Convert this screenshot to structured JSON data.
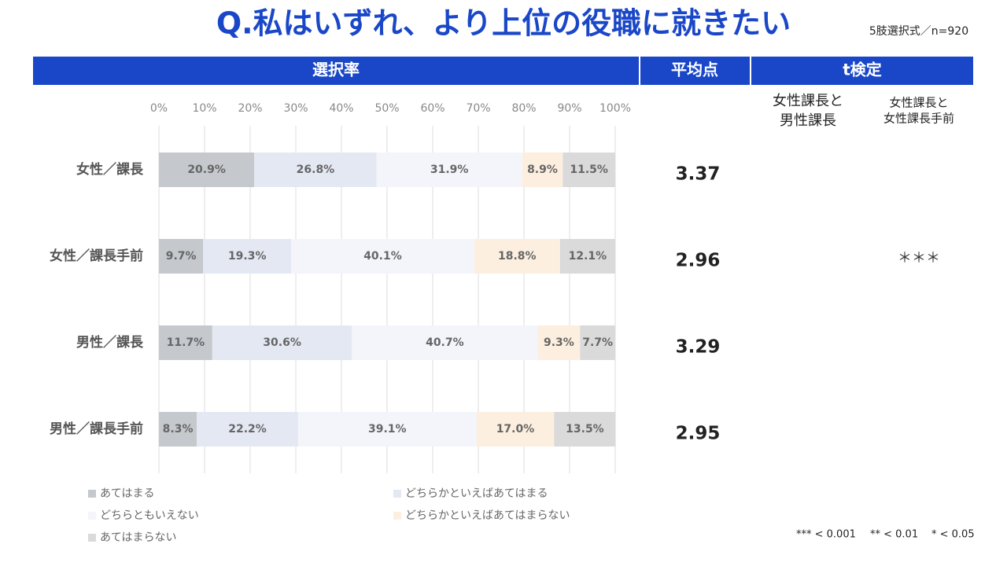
{
  "title": "Q.私はいずれ、より上位の役職に就きたい",
  "note": "5肢選択式／n=920",
  "headers": {
    "rate": "選択率",
    "mean": "平均点",
    "ttest": "t検定"
  },
  "ttest_columns": [
    [
      "女性課長と",
      "男性課長"
    ],
    [
      "女性課長と",
      "女性課長手前"
    ]
  ],
  "means": [
    3.37,
    2.96,
    3.29,
    2.95
  ],
  "significance": [
    {
      "row": 1,
      "col": 1,
      "label": "＊＊＊"
    }
  ],
  "footnote": [
    "*** < 0.001",
    "** < 0.01",
    "* < 0.05"
  ],
  "chart_data": {
    "type": "bar",
    "orientation": "horizontal",
    "stacked": true,
    "categories": [
      "女性／課長",
      "女性／課長手前",
      "男性／課長",
      "男性／課長手前"
    ],
    "series": [
      {
        "name": "あてはまる",
        "color": "#c5c8cc",
        "values": [
          20.9,
          9.7,
          11.7,
          8.3
        ],
        "value_labels": [
          "20.9%",
          "9.7%",
          "11.7%",
          "8.3%"
        ]
      },
      {
        "name": "どちらかといえばあてはまる",
        "color": "#e4e8f3",
        "values": [
          26.8,
          19.3,
          30.6,
          22.2
        ],
        "value_labels": [
          "26.8%",
          "19.3%",
          "30.6%",
          "22.2%"
        ]
      },
      {
        "name": "どちらともいえない",
        "color": "#f3f5fa",
        "values": [
          31.9,
          40.1,
          40.7,
          39.1
        ],
        "value_labels": [
          "31.9%",
          "40.1%",
          "40.7%",
          "39.1%"
        ]
      },
      {
        "name": "どちらかといえばあてはまらない",
        "color": "#fdefdf",
        "values": [
          8.9,
          18.8,
          9.3,
          17.0
        ],
        "value_labels": [
          "8.9%",
          "18.8%",
          "9.3%",
          "17.0%"
        ]
      },
      {
        "name": "あてはまらない",
        "color": "#dadada",
        "values": [
          11.5,
          12.1,
          7.7,
          13.5
        ],
        "value_labels": [
          "11.5%",
          "12.1%",
          "7.7%",
          "13.5%"
        ]
      }
    ],
    "xlim": [
      0,
      100
    ],
    "xticks": [
      {
        "value": 0,
        "label": "0%"
      },
      {
        "value": 10,
        "label": "10%"
      },
      {
        "value": 20,
        "label": "20%"
      },
      {
        "value": 30,
        "label": "30%"
      },
      {
        "value": 40,
        "label": "40%"
      },
      {
        "value": 50,
        "label": "50%"
      },
      {
        "value": 60,
        "label": "60%"
      },
      {
        "value": 70,
        "label": "70%"
      },
      {
        "value": 80,
        "label": "80%"
      },
      {
        "value": 90,
        "label": "90%"
      },
      {
        "value": 100,
        "label": "100%"
      }
    ],
    "grid": true
  }
}
